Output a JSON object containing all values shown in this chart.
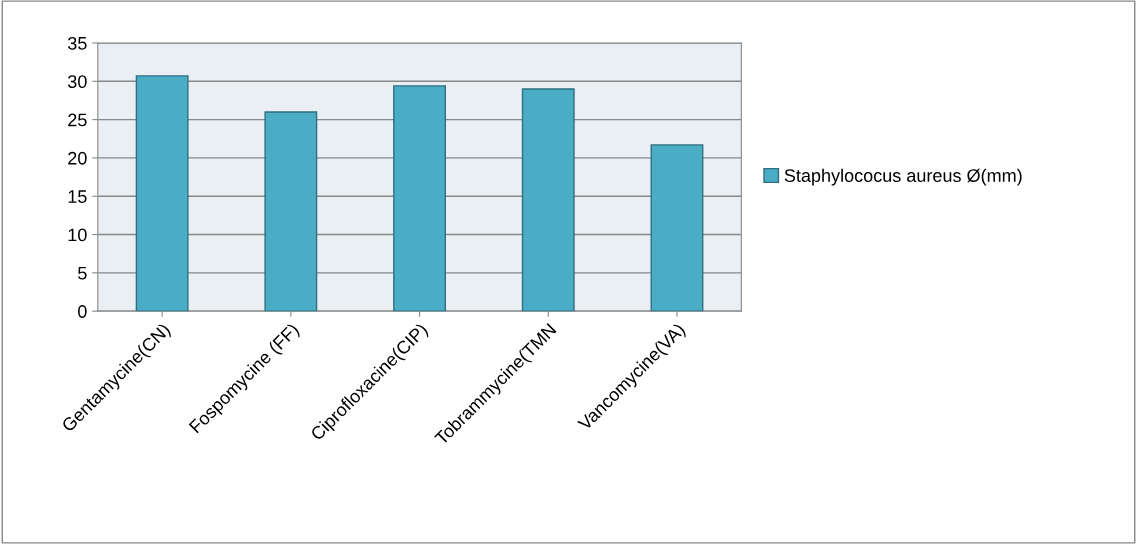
{
  "chart_data": {
    "type": "bar",
    "categories": [
      "Gentamycine(CN)",
      "Fospomycine (FF)",
      "Ciprofloxacine(CIP)",
      "Tobrammycine(TMN",
      "Vancomycine(VA)"
    ],
    "series": [
      {
        "name": "Staphylococus aureus Ø(mm)",
        "color": "#4bacc6",
        "values": [
          30.7,
          26.0,
          29.4,
          29.0,
          21.7
        ]
      }
    ],
    "ylim": [
      0,
      35
    ],
    "yticks": [
      0,
      5,
      10,
      15,
      20,
      25,
      30,
      35
    ],
    "grid": "y",
    "legend": "right"
  }
}
